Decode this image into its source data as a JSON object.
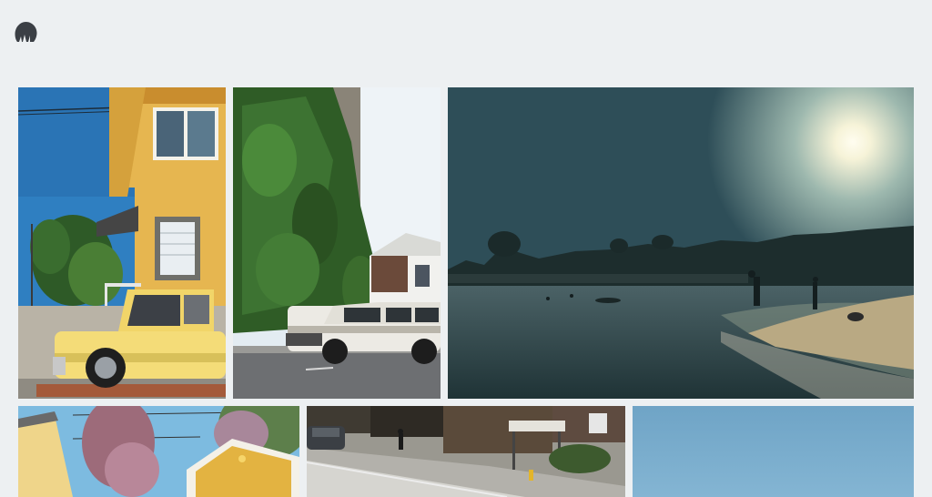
{
  "header": {
    "logo_icon": "camera-aperture-logo-icon"
  },
  "gallery": {
    "photos": [
      {
        "subject": "yellow-house-vintage-pickup",
        "accent": "#f2cf6b"
      },
      {
        "subject": "ivy-covered-building-white-suv",
        "accent": "#3f6e33"
      },
      {
        "subject": "beach-sunset-silhouettes",
        "accent": "#3d5a5e"
      },
      {
        "subject": "yellow-cottage-flowering-trees",
        "accent": "#7dbbe0"
      },
      {
        "subject": "street-corner-bus-stop",
        "accent": "#9a9890"
      },
      {
        "subject": "clear-blue-sky",
        "accent": "#7eaecb"
      }
    ]
  }
}
